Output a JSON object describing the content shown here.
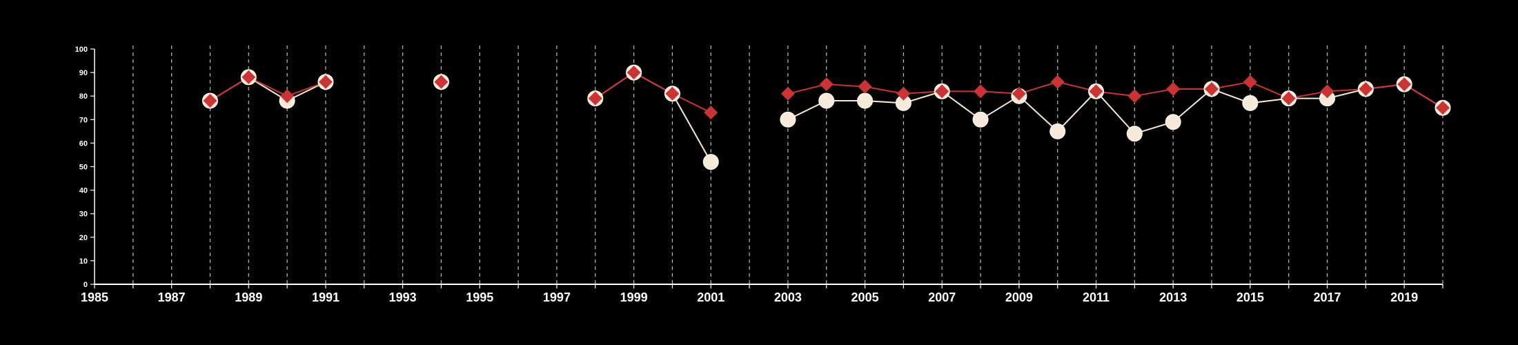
{
  "chart_data": {
    "type": "line",
    "title": "",
    "xlabel": "",
    "ylabel": "",
    "xlim": [
      1985,
      2020
    ],
    "ylim": [
      0,
      100
    ],
    "x_ticks": [
      1985,
      1987,
      1989,
      1991,
      1993,
      1995,
      1997,
      1999,
      2001,
      2003,
      2005,
      2007,
      2009,
      2011,
      2013,
      2015,
      2017,
      2019
    ],
    "x_tick_labels": [
      "1985",
      "1987",
      "1989",
      "1991",
      "1993",
      "1995",
      "1997",
      "1999",
      "2001",
      "2003",
      "2005",
      "2007",
      "2009",
      "2011",
      "2013",
      "2015",
      "2017",
      "2019"
    ],
    "y_ticks": [
      0,
      10,
      20,
      30,
      40,
      50,
      60,
      70,
      80,
      90,
      100
    ],
    "y_tick_labels": [
      "0",
      "10",
      "20",
      "30",
      "40",
      "50",
      "60",
      "70",
      "80",
      "90",
      "100"
    ],
    "grid": "vertical dashed lines at every year",
    "legend": "none",
    "colors": {
      "background": "#000000",
      "axis": "#ffffff",
      "grid": "#bfbfbf",
      "series_circle": "#f7ead8",
      "series_diamond": "#cc3333"
    },
    "x": [
      1988,
      1989,
      1990,
      1991,
      1994,
      1998,
      1999,
      2000,
      2001,
      2003,
      2004,
      2005,
      2006,
      2007,
      2008,
      2009,
      2010,
      2011,
      2012,
      2013,
      2014,
      2015,
      2016,
      2017,
      2018,
      2019,
      2020
    ],
    "series": [
      {
        "marker": "circle",
        "color": "#f7ead8",
        "values": [
          78,
          88,
          78,
          86,
          86,
          79,
          90,
          81,
          52,
          70,
          78,
          78,
          77,
          82,
          70,
          80,
          65,
          82,
          64,
          69,
          83,
          77,
          79,
          79,
          83,
          85,
          75
        ]
      },
      {
        "marker": "diamond",
        "color": "#cc3333",
        "values": [
          78,
          88,
          80,
          86,
          86,
          79,
          90,
          81,
          73,
          81,
          85,
          84,
          81,
          82,
          82,
          81,
          86,
          82,
          80,
          83,
          83,
          86,
          79,
          82,
          83,
          85,
          75
        ]
      }
    ]
  }
}
